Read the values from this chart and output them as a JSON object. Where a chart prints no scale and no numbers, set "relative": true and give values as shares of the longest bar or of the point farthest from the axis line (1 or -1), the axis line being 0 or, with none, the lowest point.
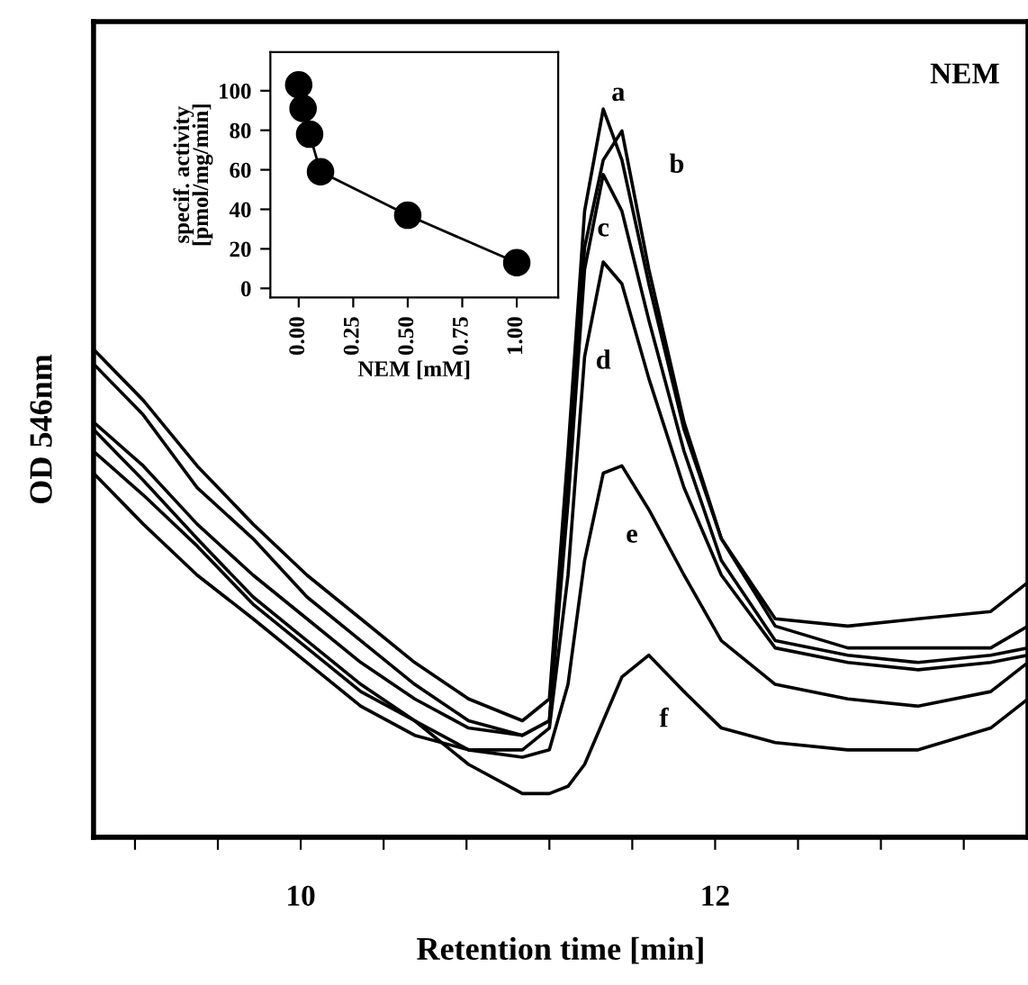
{
  "chart_data": [
    {
      "type": "line",
      "xlabel": "Retention time [min]",
      "ylabel": "OD 546nm",
      "relative": true,
      "tick_labels": "x",
      "grid": false,
      "marker": "none",
      "line_style": "solid",
      "xlim": [
        9.0,
        13.51
      ],
      "xticks": [
        {
          "value": 9.2,
          "label": null
        },
        {
          "value": 9.6,
          "label": null
        },
        10,
        {
          "value": 10.4,
          "label": null
        },
        {
          "value": 10.8,
          "label": null
        },
        {
          "value": 11.2,
          "label": null
        },
        {
          "value": 11.6,
          "label": null
        },
        12,
        {
          "value": 12.4,
          "label": null
        },
        {
          "value": 12.8,
          "label": null
        },
        {
          "value": 13.2,
          "label": null
        }
      ],
      "x": [
        9.0,
        9.24,
        9.5,
        9.77,
        10.03,
        10.29,
        10.55,
        10.81,
        11.07,
        11.2,
        11.29,
        11.37,
        11.46,
        11.55,
        11.68,
        11.85,
        12.03,
        12.29,
        12.64,
        12.98,
        13.33,
        13.51
      ],
      "series": [
        {
          "name": "a",
          "color": "#000000",
          "values": [
            0.67,
            0.6,
            0.51,
            0.43,
            0.36,
            0.3,
            0.24,
            0.19,
            0.16,
            0.19,
            0.53,
            0.86,
            1.0,
            0.93,
            0.76,
            0.56,
            0.41,
            0.3,
            0.29,
            0.3,
            0.31,
            0.35
          ]
        },
        {
          "name": "b",
          "color": "#000000",
          "values": [
            0.65,
            0.58,
            0.48,
            0.41,
            0.33,
            0.27,
            0.21,
            0.16,
            0.14,
            0.16,
            0.48,
            0.81,
            0.93,
            0.97,
            0.78,
            0.57,
            0.41,
            0.29,
            0.26,
            0.26,
            0.26,
            0.29
          ]
        },
        {
          "name": "c",
          "color": "#000000",
          "values": [
            0.57,
            0.51,
            0.43,
            0.36,
            0.3,
            0.24,
            0.19,
            0.15,
            0.14,
            0.16,
            0.46,
            0.78,
            0.91,
            0.86,
            0.71,
            0.53,
            0.38,
            0.27,
            0.25,
            0.24,
            0.25,
            0.26
          ]
        },
        {
          "name": "d",
          "color": "#000000",
          "values": [
            0.53,
            0.47,
            0.4,
            0.32,
            0.26,
            0.2,
            0.16,
            0.12,
            0.12,
            0.15,
            0.36,
            0.66,
            0.79,
            0.76,
            0.63,
            0.48,
            0.36,
            0.26,
            0.24,
            0.23,
            0.24,
            0.25
          ]
        },
        {
          "name": "e",
          "color": "#000000",
          "values": [
            0.5,
            0.43,
            0.36,
            0.3,
            0.24,
            0.18,
            0.14,
            0.12,
            0.11,
            0.12,
            0.21,
            0.38,
            0.5,
            0.51,
            0.45,
            0.36,
            0.27,
            0.21,
            0.19,
            0.18,
            0.2,
            0.24
          ]
        },
        {
          "name": "f",
          "color": "#000000",
          "values": [
            0.56,
            0.49,
            0.41,
            0.33,
            0.27,
            0.21,
            0.16,
            0.1,
            0.06,
            0.06,
            0.07,
            0.1,
            0.16,
            0.22,
            0.25,
            0.2,
            0.15,
            0.13,
            0.12,
            0.12,
            0.15,
            0.19
          ]
        }
      ],
      "annotations": [
        "NEM"
      ]
    },
    {
      "type": "line",
      "xlabel": "NEM [mM]",
      "ylabel": "specif. activity\n[pmol/mg/min]",
      "marker": "circle",
      "line_style": "solid",
      "grid": false,
      "xlim": [
        -0.13,
        1.19
      ],
      "ylim": [
        -4.6,
        119.5
      ],
      "xticks": [
        {
          "value": 0,
          "label": "0.00"
        },
        0.25,
        {
          "value": 0.5,
          "label": "0.50"
        },
        0.75,
        {
          "value": 1,
          "label": "1.00"
        }
      ],
      "yticks": [
        0,
        20,
        40,
        60,
        80,
        100
      ],
      "x": [
        0,
        0.02,
        0.05,
        0.1,
        0.5,
        1.0
      ],
      "series": [
        {
          "color": "#000000",
          "values": [
            103,
            91,
            78,
            59,
            37,
            13
          ]
        }
      ]
    }
  ]
}
